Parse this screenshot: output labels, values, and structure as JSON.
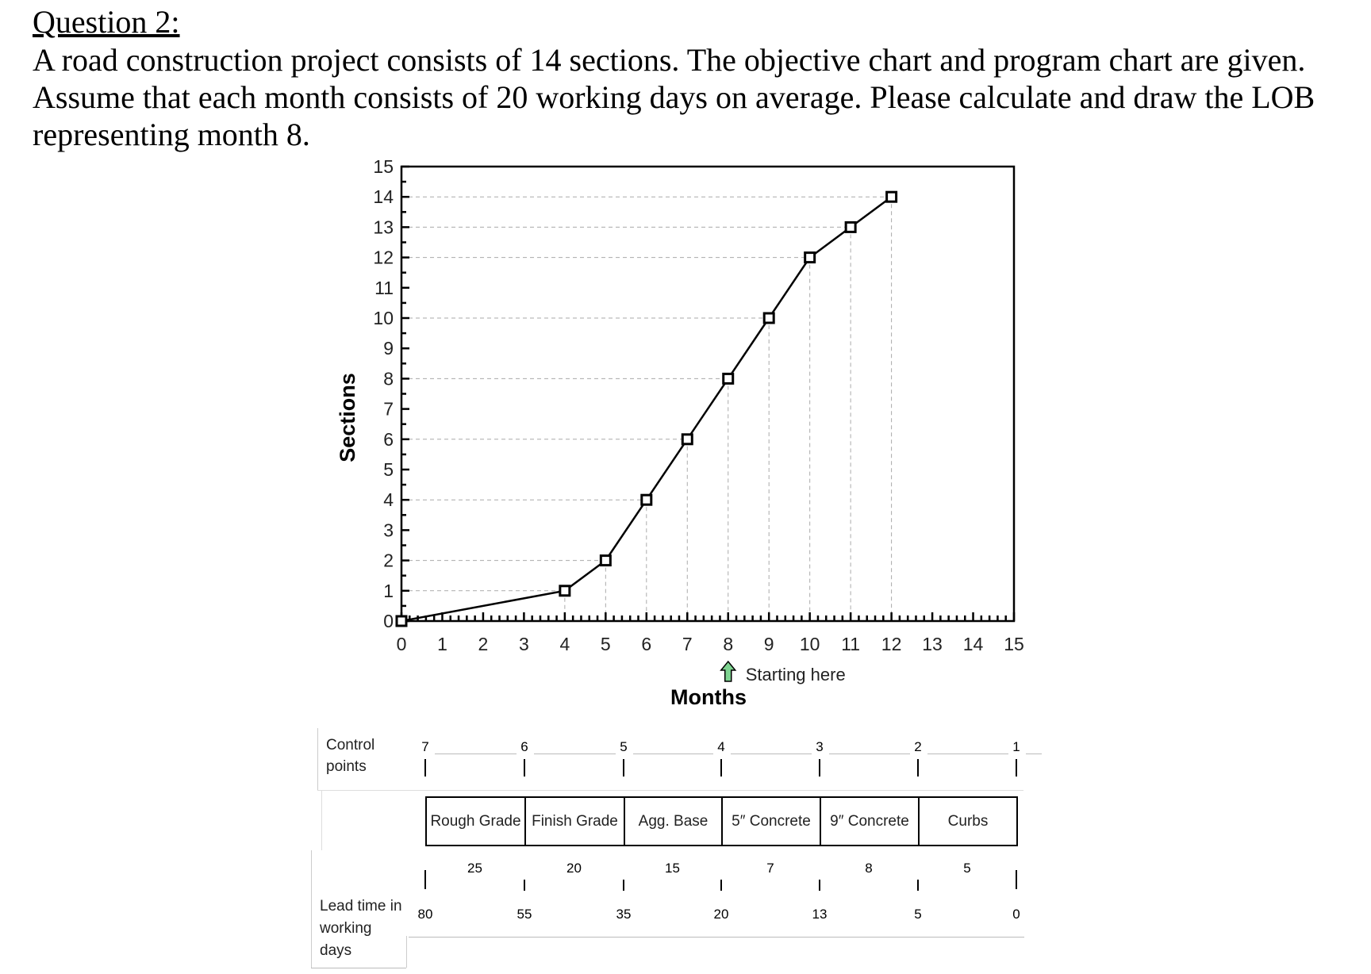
{
  "question": {
    "title": "Question 2:",
    "text": "A road construction project consists of 14 sections. The objective chart and program chart are given. Assume that each month consists of 20 working days on average. Please calculate and draw the LOB representing month 8."
  },
  "chart_data": {
    "type": "line",
    "title": "",
    "xlabel": "Months",
    "ylabel": "Sections",
    "xlim": [
      0,
      15
    ],
    "ylim": [
      0,
      15
    ],
    "x_ticks": [
      0,
      1,
      2,
      3,
      4,
      5,
      6,
      7,
      8,
      9,
      10,
      11,
      12,
      13,
      14,
      15
    ],
    "y_ticks": [
      0,
      1,
      2,
      3,
      4,
      5,
      6,
      7,
      8,
      9,
      10,
      11,
      12,
      13,
      14,
      15
    ],
    "grid": "dashed guide lines from each point to axes",
    "marker": "square",
    "series": [
      {
        "x": [
          0,
          4,
          5,
          6,
          7,
          8,
          9,
          10,
          11,
          12
        ],
        "y": [
          0,
          1,
          2,
          4,
          6,
          8,
          10,
          12,
          13,
          14
        ]
      }
    ],
    "annotation": {
      "text": "Starting here",
      "x": 8,
      "arrow_color": "#7ed491",
      "icon": "up-arrow-icon"
    }
  },
  "program_chart": {
    "control_points_label": "Control points",
    "control_points": [
      "7",
      "6",
      "5",
      "4",
      "3",
      "2",
      "1"
    ],
    "activities": [
      "Rough Grade",
      "Finish Grade",
      "Agg. Base",
      "5″ Concrete",
      "9″ Concrete",
      "Curbs"
    ],
    "durations": [
      "25",
      "20",
      "15",
      "7",
      "8",
      "5"
    ],
    "lead_time_label": "Lead time in working days",
    "lead_times": [
      "80",
      "55",
      "35",
      "20",
      "13",
      "5",
      "0"
    ]
  }
}
